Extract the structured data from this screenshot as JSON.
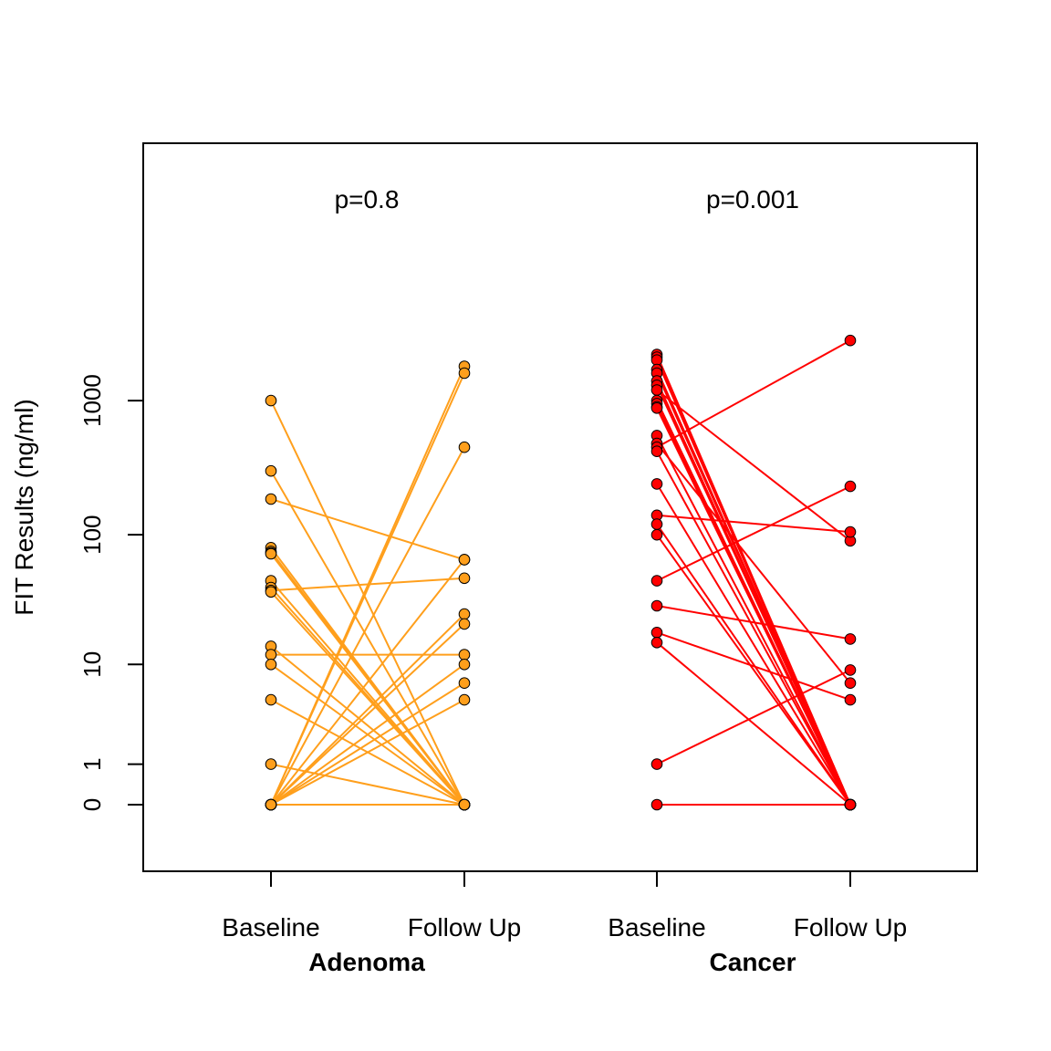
{
  "chart_data": {
    "type": "line",
    "ylabel": "FIT Results (ng/ml)",
    "yscale": "log1p",
    "ylim": [
      -0.5,
      4
    ],
    "yticks": [
      {
        "value": 0,
        "label": "0"
      },
      {
        "value": 1,
        "label": "1"
      },
      {
        "value": 10,
        "label": "10"
      },
      {
        "value": 100,
        "label": "100"
      },
      {
        "value": 1000,
        "label": "1000"
      }
    ],
    "x_tick_labels": [
      "Baseline",
      "Follow Up",
      "Baseline",
      "Follow Up"
    ],
    "colors": {
      "adenoma": "#ff9f1c",
      "cancer": "#ff0000",
      "point_outline": "#000000"
    },
    "groups": [
      {
        "name": "Adenoma",
        "annotation": "p=0.8",
        "color": "#ff9f1c",
        "pairs": [
          [
            1000,
            0
          ],
          [
            300,
            0
          ],
          [
            185,
            65
          ],
          [
            80,
            0
          ],
          [
            75,
            0
          ],
          [
            73,
            0
          ],
          [
            72,
            0
          ],
          [
            45,
            0
          ],
          [
            40,
            0
          ],
          [
            38,
            47
          ],
          [
            37,
            0
          ],
          [
            14,
            0
          ],
          [
            12,
            12
          ],
          [
            10,
            0
          ],
          [
            5,
            0
          ],
          [
            1,
            0
          ],
          [
            0,
            1800
          ],
          [
            0,
            1600
          ],
          [
            0,
            450
          ],
          [
            0,
            65
          ],
          [
            0,
            25
          ],
          [
            0,
            21
          ],
          [
            0,
            10
          ],
          [
            0,
            7
          ],
          [
            0,
            5
          ],
          [
            0,
            0
          ]
        ]
      },
      {
        "name": "Cancer",
        "annotation": "p=0.001",
        "color": "#ff0000",
        "pairs": [
          [
            2200,
            0
          ],
          [
            2100,
            0
          ],
          [
            2000,
            0
          ],
          [
            1700,
            0
          ],
          [
            1600,
            0
          ],
          [
            1400,
            0
          ],
          [
            1300,
            0
          ],
          [
            1200,
            90
          ],
          [
            1000,
            0
          ],
          [
            950,
            0
          ],
          [
            900,
            0
          ],
          [
            880,
            0
          ],
          [
            550,
            0
          ],
          [
            480,
            7
          ],
          [
            450,
            2800
          ],
          [
            420,
            0
          ],
          [
            240,
            0
          ],
          [
            140,
            105
          ],
          [
            120,
            0
          ],
          [
            100,
            0
          ],
          [
            45,
            230
          ],
          [
            29,
            16
          ],
          [
            18,
            5
          ],
          [
            15,
            0
          ],
          [
            1,
            9
          ],
          [
            0,
            0
          ]
        ]
      }
    ]
  }
}
